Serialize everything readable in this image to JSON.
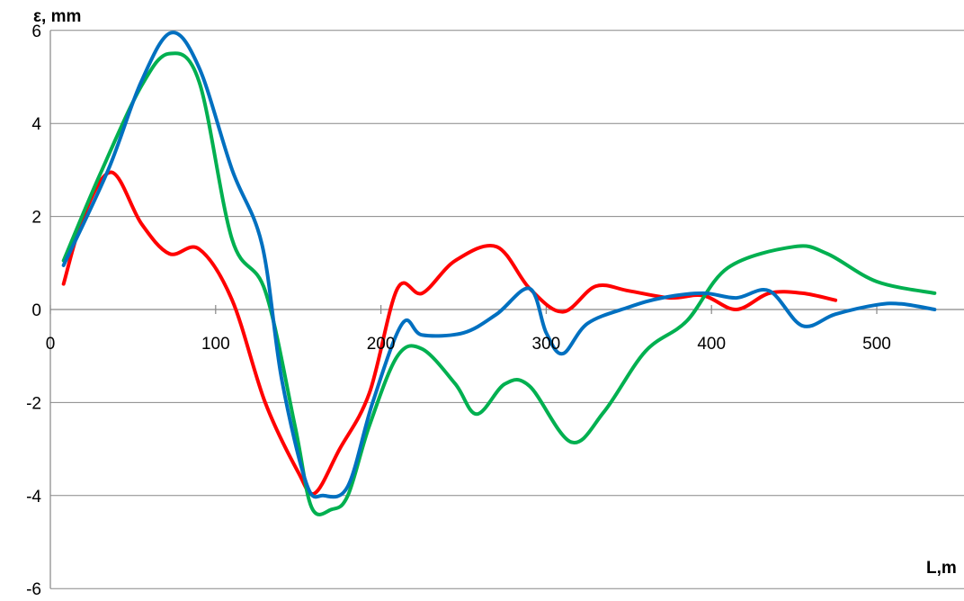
{
  "chart_data": {
    "type": "line",
    "title": "",
    "xlabel": "L,m",
    "ylabel": "ε, mm",
    "xlim": [
      0,
      560
    ],
    "ylim": [
      -6,
      6
    ],
    "x_ticks": [
      0,
      100,
      200,
      300,
      400,
      500
    ],
    "y_ticks": [
      6,
      4,
      2,
      0,
      -2,
      -4,
      -6
    ],
    "x_tick_labels": [
      "0",
      "100",
      "200",
      "300",
      "400",
      "500"
    ],
    "y_tick_labels": [
      "6",
      "4",
      "2",
      "0",
      "-2",
      "-4",
      "-6"
    ],
    "grid": "horizontal",
    "legend": "none",
    "series": [
      {
        "color": "#ff0000",
        "points": [
          [
            8,
            0.55
          ],
          [
            20,
            2.0
          ],
          [
            37,
            2.95
          ],
          [
            55,
            1.85
          ],
          [
            72,
            1.2
          ],
          [
            90,
            1.3
          ],
          [
            110,
            0.2
          ],
          [
            130,
            -2.0
          ],
          [
            150,
            -3.5
          ],
          [
            160,
            -3.95
          ],
          [
            175,
            -3.0
          ],
          [
            193,
            -1.8
          ],
          [
            210,
            0.45
          ],
          [
            225,
            0.35
          ],
          [
            245,
            1.05
          ],
          [
            270,
            1.35
          ],
          [
            290,
            0.45
          ],
          [
            310,
            -0.05
          ],
          [
            330,
            0.5
          ],
          [
            350,
            0.4
          ],
          [
            375,
            0.25
          ],
          [
            395,
            0.3
          ],
          [
            415,
            0.0
          ],
          [
            435,
            0.35
          ],
          [
            455,
            0.35
          ],
          [
            475,
            0.2
          ]
        ]
      },
      {
        "color": "#00b050",
        "points": [
          [
            8,
            1.05
          ],
          [
            30,
            2.9
          ],
          [
            55,
            4.8
          ],
          [
            72,
            5.5
          ],
          [
            90,
            4.9
          ],
          [
            110,
            1.5
          ],
          [
            130,
            0.4
          ],
          [
            148,
            -2.5
          ],
          [
            158,
            -4.25
          ],
          [
            170,
            -4.3
          ],
          [
            180,
            -4.0
          ],
          [
            193,
            -2.5
          ],
          [
            210,
            -1.0
          ],
          [
            225,
            -0.85
          ],
          [
            245,
            -1.6
          ],
          [
            258,
            -2.25
          ],
          [
            275,
            -1.6
          ],
          [
            290,
            -1.65
          ],
          [
            315,
            -2.85
          ],
          [
            335,
            -2.2
          ],
          [
            360,
            -0.9
          ],
          [
            385,
            -0.25
          ],
          [
            410,
            0.9
          ],
          [
            450,
            1.35
          ],
          [
            470,
            1.2
          ],
          [
            500,
            0.6
          ],
          [
            535,
            0.35
          ]
        ]
      },
      {
        "color": "#0070c0",
        "points": [
          [
            8,
            0.95
          ],
          [
            35,
            3.0
          ],
          [
            55,
            4.9
          ],
          [
            73,
            5.95
          ],
          [
            90,
            5.2
          ],
          [
            110,
            3.0
          ],
          [
            128,
            1.4
          ],
          [
            140,
            -1.5
          ],
          [
            155,
            -3.75
          ],
          [
            165,
            -4.0
          ],
          [
            180,
            -3.8
          ],
          [
            195,
            -2.0
          ],
          [
            213,
            -0.3
          ],
          [
            225,
            -0.55
          ],
          [
            250,
            -0.5
          ],
          [
            270,
            -0.1
          ],
          [
            290,
            0.45
          ],
          [
            300,
            -0.5
          ],
          [
            310,
            -0.95
          ],
          [
            325,
            -0.3
          ],
          [
            350,
            0.05
          ],
          [
            370,
            0.25
          ],
          [
            395,
            0.35
          ],
          [
            415,
            0.25
          ],
          [
            435,
            0.4
          ],
          [
            455,
            -0.35
          ],
          [
            475,
            -0.1
          ],
          [
            500,
            0.1
          ],
          [
            515,
            0.12
          ],
          [
            535,
            0.0
          ]
        ]
      }
    ]
  }
}
